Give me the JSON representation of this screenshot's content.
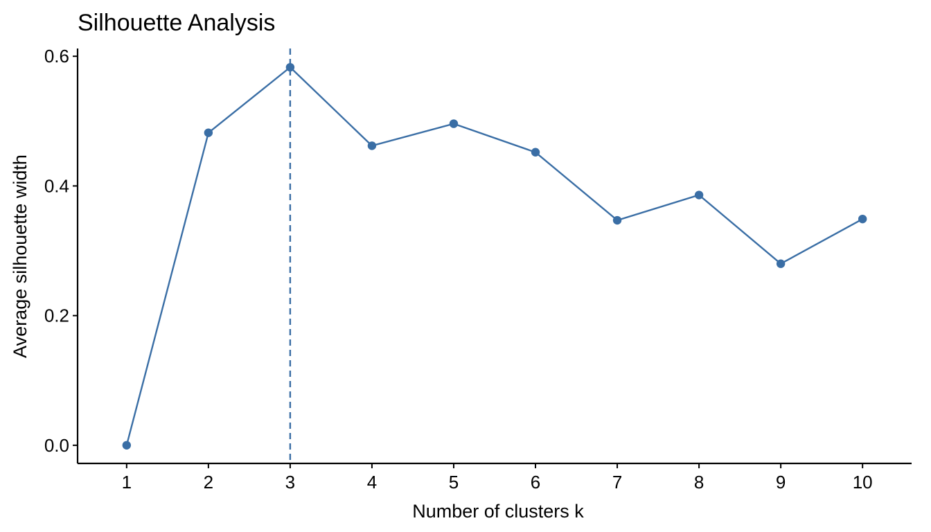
{
  "chart_data": {
    "type": "line",
    "title": "Silhouette Analysis",
    "xlabel": "Number of clusters k",
    "ylabel": "Average silhouette width",
    "x": [
      1,
      2,
      3,
      4,
      5,
      6,
      7,
      8,
      9,
      10
    ],
    "x_tick_labels": [
      "1",
      "2",
      "3",
      "4",
      "5",
      "6",
      "7",
      "8",
      "9",
      "10"
    ],
    "y_ticks": [
      0.0,
      0.2,
      0.4,
      0.6
    ],
    "y_tick_labels": [
      "0.0",
      "0.2",
      "0.4",
      "0.6"
    ],
    "series": [
      {
        "values": [
          0.0,
          0.482,
          0.583,
          0.462,
          0.496,
          0.452,
          0.347,
          0.386,
          0.28,
          0.349
        ],
        "color": "#3A6EA5"
      }
    ],
    "reference_line": {
      "axis": "x",
      "value": 3,
      "style": "dashed",
      "color": "#3A6EA5"
    },
    "xlim": [
      0.4,
      10.6
    ],
    "ylim": [
      -0.028,
      0.612
    ],
    "grid": false,
    "legend": "none"
  }
}
